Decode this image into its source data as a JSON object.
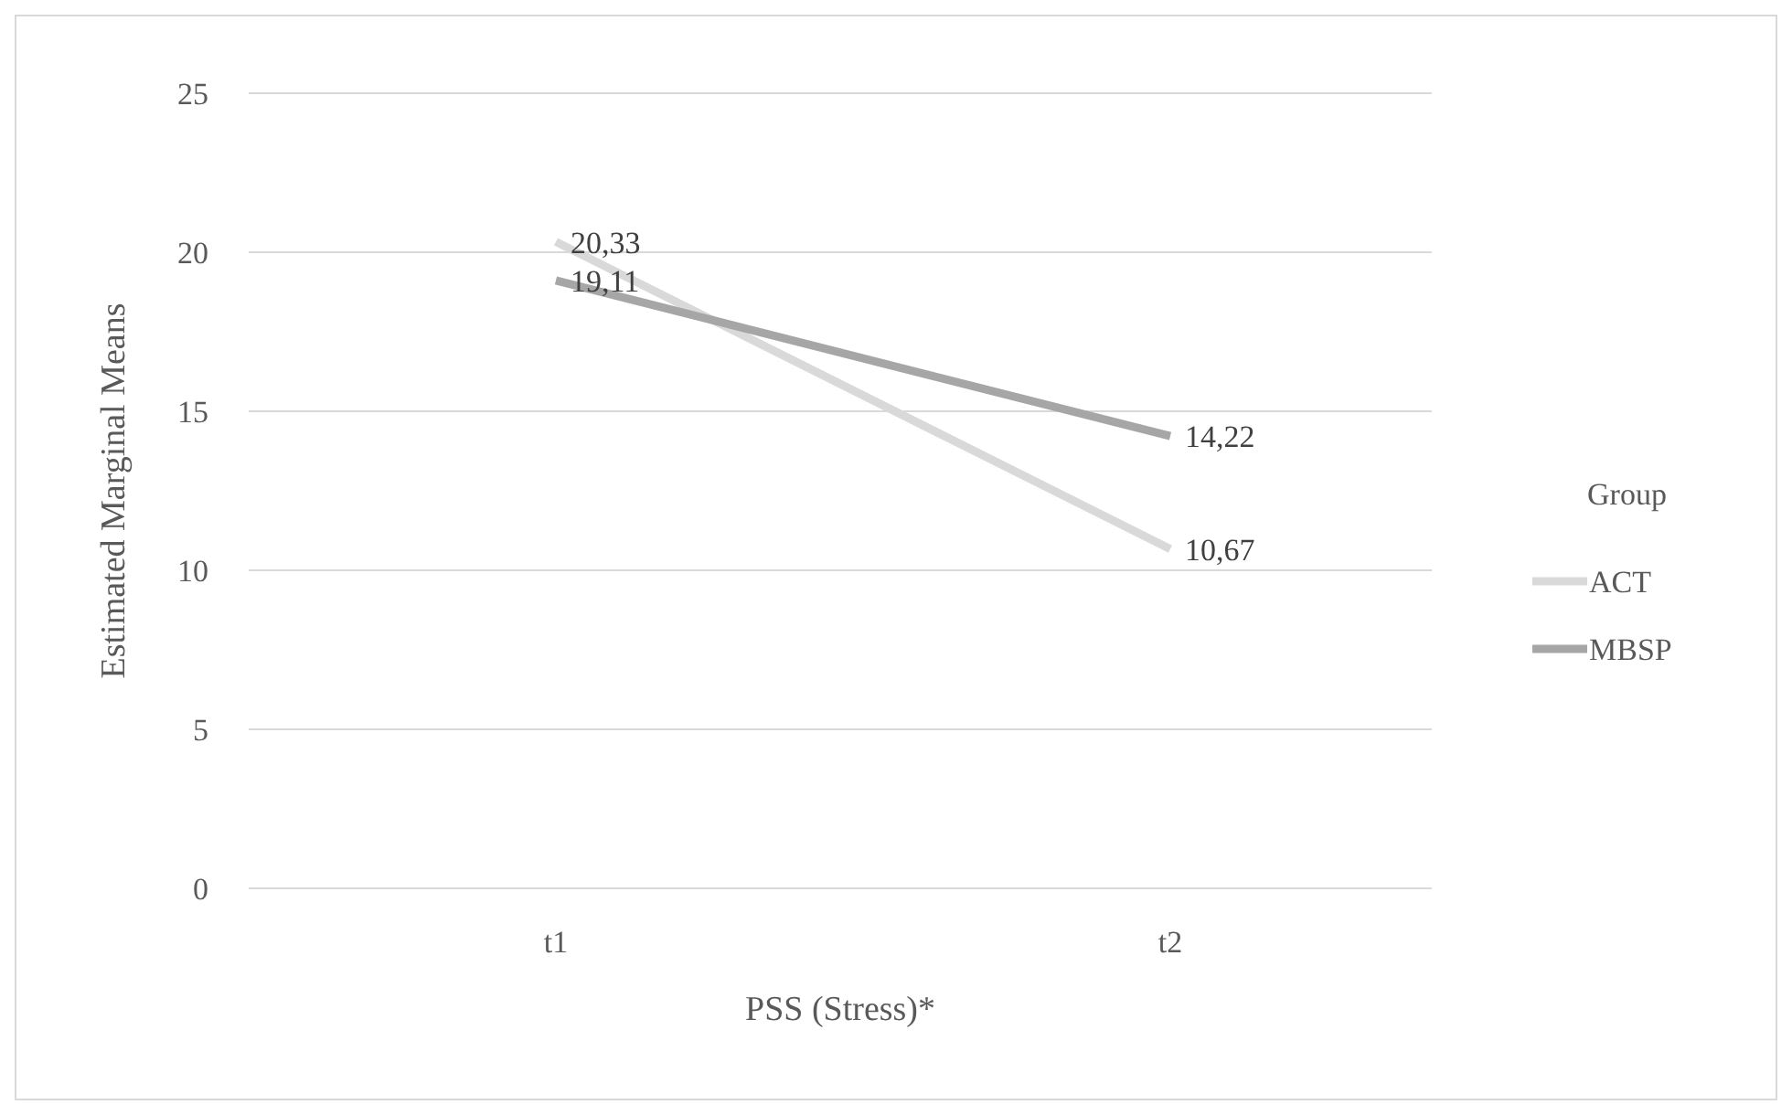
{
  "chart_data": {
    "type": "line",
    "xlabel": "PSS (Stress)*",
    "ylabel": "Estimated Marginal Means",
    "legend_title": "Group",
    "categories": [
      "t1",
      "t2"
    ],
    "series": [
      {
        "name": "ACT",
        "color": "#d9d9d9",
        "values": [
          20.33,
          10.67
        ],
        "value_labels": [
          "20,33",
          "10,67"
        ]
      },
      {
        "name": "MBSP",
        "color": "#a6a6a6",
        "values": [
          19.11,
          14.22
        ],
        "value_labels": [
          "19,11",
          "14,22"
        ]
      }
    ],
    "ylim": [
      0,
      25
    ],
    "yticks": [
      0,
      5,
      10,
      15,
      20,
      25
    ],
    "grid": "y",
    "legend": "right",
    "marker": "none",
    "line_style": "solid"
  }
}
